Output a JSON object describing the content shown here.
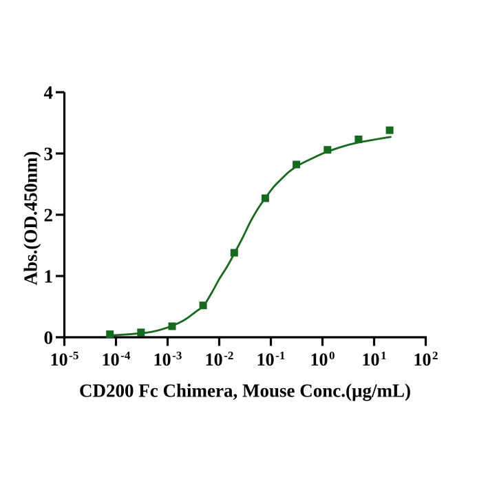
{
  "figure": {
    "background_color": "#ffffff",
    "axis_color": "#000000",
    "accent_green": "#166a1d"
  },
  "chart_data": {
    "type": "scatter",
    "title": "",
    "xlabel": "CD200 Fc Chimera, Mouse Conc.(µg/mL)",
    "ylabel": "Abs.(OD.450nm)",
    "x_scale": "log10",
    "grid": false,
    "legend": false,
    "ylim": [
      0,
      4
    ],
    "xlim_log10": [
      -5,
      2
    ],
    "y_ticks": [
      "0",
      "1",
      "2",
      "3",
      "4"
    ],
    "x_tick_base": "10",
    "x_tick_exponents": [
      "-5",
      "-4",
      "-3",
      "-2",
      "-1",
      "0",
      "1",
      "2"
    ],
    "series": [
      {
        "marker": "square",
        "color": "#166a1d",
        "x_conc_ug_ml": [
          7.63e-05,
          0.000305,
          0.00122,
          0.00488,
          0.0195,
          0.0781,
          0.3125,
          1.25,
          5,
          20
        ],
        "y_abs": [
          0.05,
          0.08,
          0.18,
          0.52,
          1.38,
          2.27,
          2.82,
          3.06,
          3.23,
          3.38
        ]
      }
    ],
    "fit_curve": {
      "color": "#166a1d",
      "points_log10x_abs": [
        [
          -4.15,
          0.03
        ],
        [
          -3.9,
          0.04
        ],
        [
          -3.6,
          0.06
        ],
        [
          -3.3,
          0.09
        ],
        [
          -3.0,
          0.16
        ],
        [
          -2.7,
          0.27
        ],
        [
          -2.45,
          0.42
        ],
        [
          -2.3,
          0.52
        ],
        [
          -2.15,
          0.72
        ],
        [
          -2.0,
          0.95
        ],
        [
          -1.85,
          1.15
        ],
        [
          -1.7,
          1.38
        ],
        [
          -1.55,
          1.62
        ],
        [
          -1.4,
          1.88
        ],
        [
          -1.25,
          2.1
        ],
        [
          -1.1,
          2.28
        ],
        [
          -0.95,
          2.45
        ],
        [
          -0.8,
          2.58
        ],
        [
          -0.65,
          2.7
        ],
        [
          -0.5,
          2.79
        ],
        [
          -0.35,
          2.86
        ],
        [
          -0.2,
          2.92
        ],
        [
          -0.05,
          2.98
        ],
        [
          0.1,
          3.03
        ],
        [
          0.3,
          3.09
        ],
        [
          0.5,
          3.14
        ],
        [
          0.7,
          3.18
        ],
        [
          0.9,
          3.21
        ],
        [
          1.1,
          3.24
        ],
        [
          1.32,
          3.27
        ]
      ]
    }
  }
}
